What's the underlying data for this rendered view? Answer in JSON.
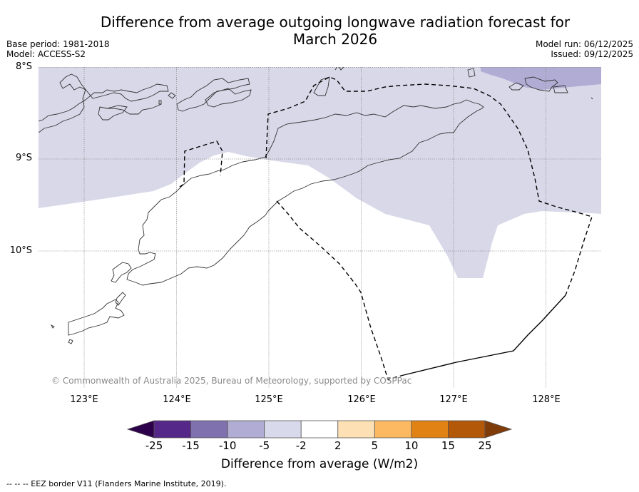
{
  "header": {
    "title_line1": "Difference from average outgoing longwave radiation forecast for",
    "title_line2": "March 2026",
    "base_period": "Base period: 1981-2018",
    "model": "Model: ACCESS-S2",
    "model_run": "Model run: 06/12/2025",
    "issued": "Issued: 09/12/2025"
  },
  "map": {
    "lat_labels": [
      "8°S",
      "9°S",
      "10°S"
    ],
    "lon_labels": [
      "123°E",
      "124°E",
      "125°E",
      "126°E",
      "127°E",
      "128°E"
    ],
    "lat_range": [
      -11.5,
      -8.0
    ],
    "lon_range": [
      122.5,
      128.6
    ],
    "copyright": "© Commonwealth of Australia 2025, Bureau of Meteorology, supported by COSPPac",
    "regions": [
      {
        "name": "anomaly -5 to -2 (north band)",
        "class": "-5 to -2",
        "color": "#d8d8e9"
      },
      {
        "name": "anomaly -10 to -5 (northeast corner)",
        "class": "-10 to -5",
        "color": "#b1acd3"
      }
    ],
    "eez_border_color": "#000000",
    "coastline_color": "#333333"
  },
  "colorbar": {
    "title": "Difference from average (W/m2)",
    "ticks": [
      "-25",
      "-15",
      "-10",
      "-5",
      "-2",
      "2",
      "5",
      "10",
      "15",
      "25"
    ],
    "colors": [
      "#552788",
      "#7f71ad",
      "#b1acd3",
      "#d8d9ea",
      "#ffffff",
      "#fee0b5",
      "#fdb862",
      "#e08214",
      "#b35808"
    ],
    "under_color": "#2d004b",
    "over_color": "#7f3b08"
  },
  "footnote": "--  --  -- EEZ border V11 (Flanders Marine Institute, 2019)."
}
